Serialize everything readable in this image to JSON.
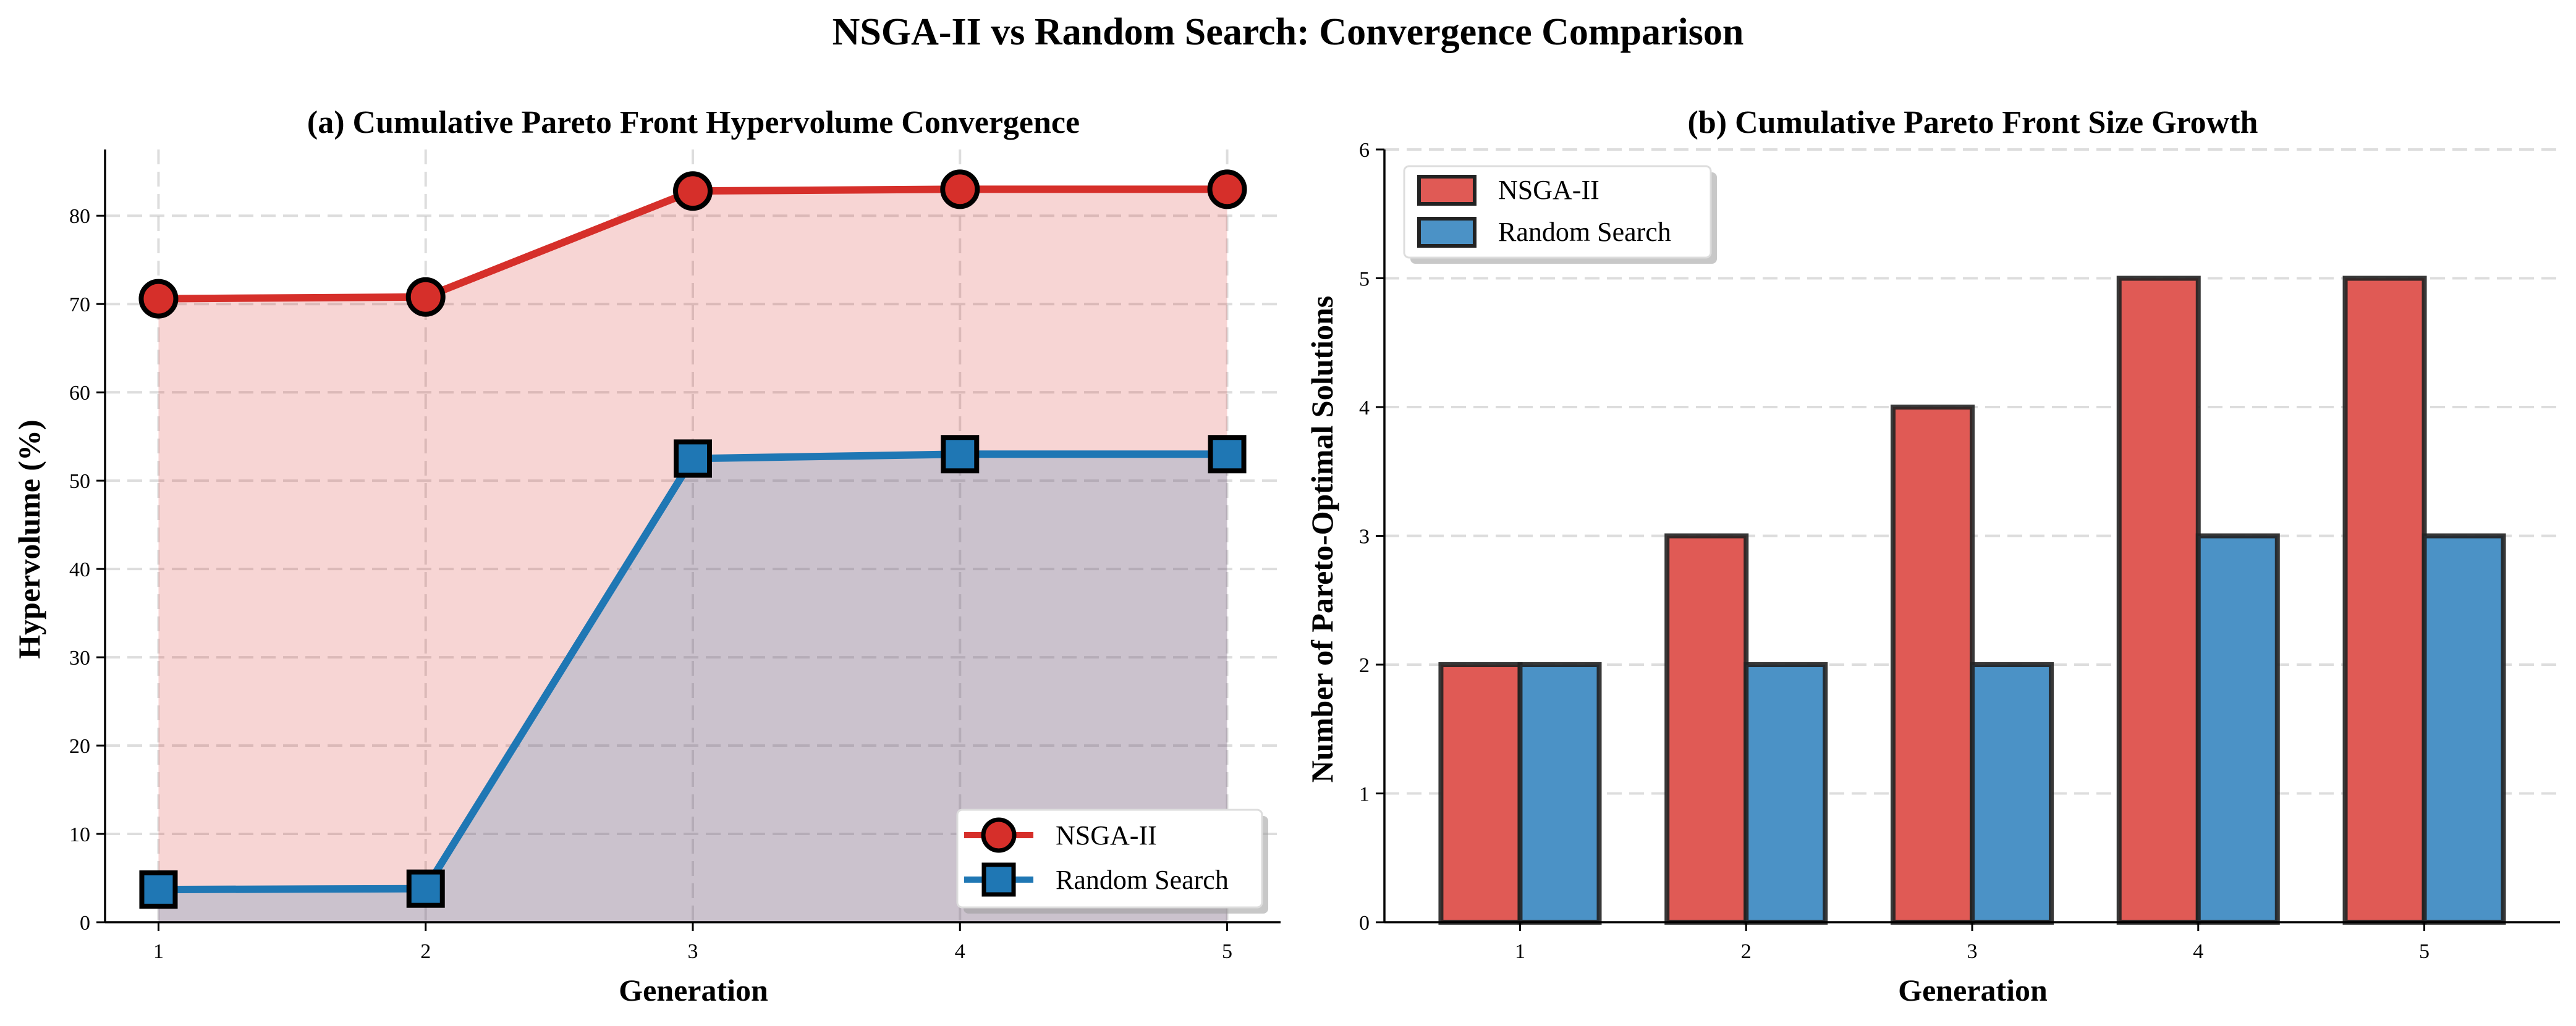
{
  "figure": {
    "title": "NSGA-II vs Random Search: Convergence Comparison"
  },
  "colors": {
    "nsga": "#d62f2a",
    "random": "#1f77b4",
    "nsga_bar": "#e05a55",
    "random_bar": "#4b92c6"
  },
  "chart_data": [
    {
      "type": "line",
      "title": "(a) Cumulative Pareto Front Hypervolume Convergence",
      "xlabel": "Generation",
      "ylabel": "Hypervolume (%)",
      "x": [
        1,
        2,
        3,
        4,
        5
      ],
      "xticks": [
        "1",
        "2",
        "3",
        "4",
        "5"
      ],
      "yticks": [
        0,
        10,
        20,
        30,
        40,
        50,
        60,
        70,
        80
      ],
      "ylim": [
        0,
        87.5
      ],
      "grid": true,
      "legend_position": "lower-right",
      "series": [
        {
          "name": "NSGA-II",
          "values": [
            70.6,
            70.8,
            82.8,
            83.0,
            83.0
          ],
          "marker": "circle",
          "fill": true
        },
        {
          "name": "Random Search",
          "values": [
            3.7,
            3.8,
            52.5,
            53.0,
            53.0
          ],
          "marker": "square",
          "fill": true
        }
      ]
    },
    {
      "type": "bar",
      "title": "(b) Cumulative Pareto Front Size Growth",
      "xlabel": "Generation",
      "ylabel": "Number of Pareto-Optimal Solutions",
      "categories": [
        "1",
        "2",
        "3",
        "4",
        "5"
      ],
      "yticks": [
        0,
        1,
        2,
        3,
        4,
        5,
        6
      ],
      "ylim": [
        0,
        6
      ],
      "grid": true,
      "legend_position": "upper-left",
      "series": [
        {
          "name": "NSGA-II",
          "values": [
            2,
            3,
            4,
            5,
            5
          ]
        },
        {
          "name": "Random Search",
          "values": [
            2,
            2,
            2,
            3,
            3
          ]
        }
      ]
    }
  ]
}
